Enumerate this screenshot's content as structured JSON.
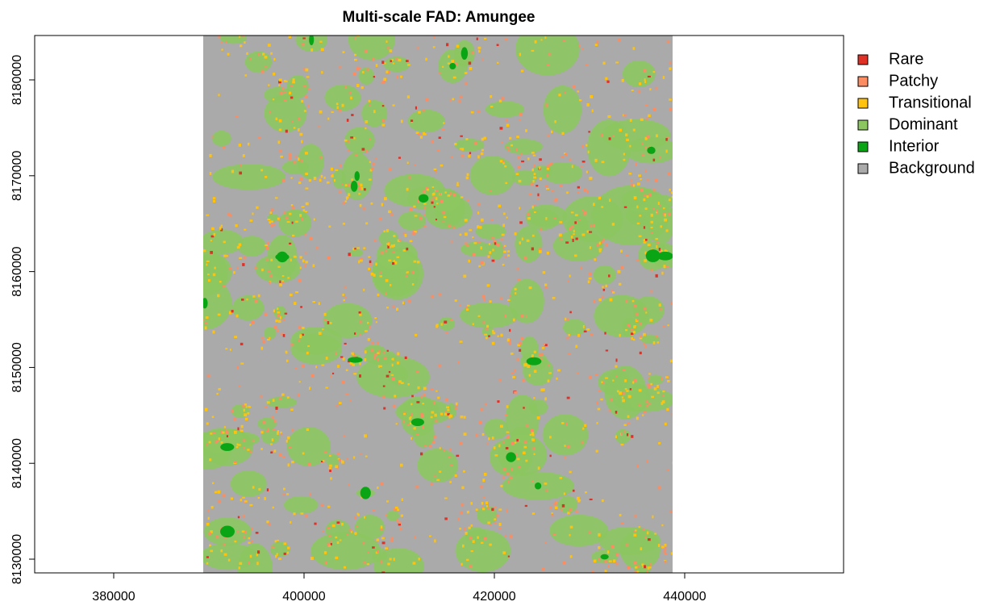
{
  "chart_data": {
    "type": "raster",
    "title": "Multi-scale FAD: Amungee",
    "xlim": [
      371695,
      456695
    ],
    "ylim": [
      8128570,
      8184630
    ],
    "xticks": [
      380000,
      400000,
      420000,
      440000
    ],
    "yticks": [
      8130000,
      8140000,
      8150000,
      8160000,
      8170000,
      8180000
    ],
    "raster_extent": [
      389407,
      438729
    ],
    "classes": [
      {
        "name": "Rare",
        "color": "#e03127"
      },
      {
        "name": "Patchy",
        "color": "#fc8d62"
      },
      {
        "name": "Transitional",
        "color": "#ffc20e"
      },
      {
        "name": "Dominant",
        "color": "#8cc660"
      },
      {
        "name": "Interior",
        "color": "#0aa514"
      },
      {
        "name": "Background",
        "color": "#aaaaaa"
      }
    ],
    "legend": "outside-right"
  }
}
